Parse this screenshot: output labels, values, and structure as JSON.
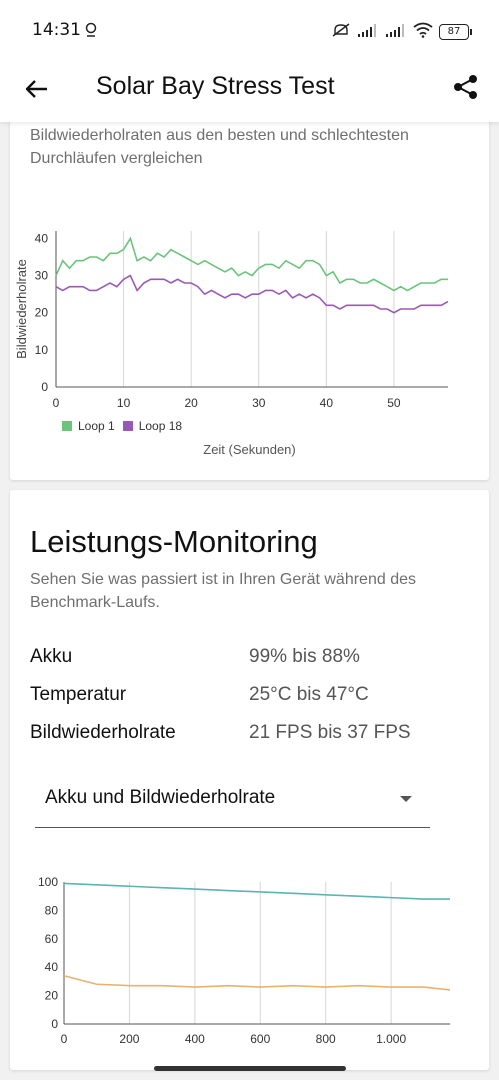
{
  "status": {
    "time": "14:31",
    "battery": "87"
  },
  "appbar": {
    "title": "Solar Bay Stress Test"
  },
  "card1": {
    "description": "Bildwiederholraten aus den besten und schlechtesten Durchläufen vergleichen",
    "xlabel": "Zeit (Sekunden)",
    "ylabel": "Bildwiederholrate",
    "legend": [
      {
        "label": "Loop 1",
        "color": "#6cc47c"
      },
      {
        "label": "Loop 18",
        "color": "#9b59b6"
      }
    ],
    "yticks": [
      "0",
      "10",
      "20",
      "30",
      "40"
    ],
    "xticks": [
      "0",
      "10",
      "20",
      "30",
      "40",
      "50"
    ]
  },
  "card2": {
    "title": "Leistungs-Monitoring",
    "description": "Sehen Sie was passiert ist in Ihren Gerät während des Benchmark-Laufs.",
    "metrics": [
      {
        "name": "Akku",
        "value": "99% bis 88%"
      },
      {
        "name": "Temperatur",
        "value": "25°C bis 47°C"
      },
      {
        "name": "Bildwiederholrate",
        "value": "21 FPS bis 37 FPS"
      }
    ],
    "dropdown": "Akku und Bildwiederholrate",
    "yticks": [
      "0",
      "20",
      "40",
      "60",
      "80",
      "100"
    ],
    "xticks": [
      "0",
      "200",
      "400",
      "600",
      "800",
      "1.000"
    ]
  },
  "chart_data": [
    {
      "type": "line",
      "ylabel": "Bildwiederholrate",
      "xlabel": "Zeit (Sekunden)",
      "xlim": [
        0,
        58
      ],
      "ylim": [
        0,
        42
      ],
      "x": [
        0,
        1,
        2,
        3,
        4,
        5,
        6,
        7,
        8,
        9,
        10,
        11,
        12,
        13,
        14,
        15,
        16,
        17,
        18,
        19,
        20,
        21,
        22,
        23,
        24,
        25,
        26,
        27,
        28,
        29,
        30,
        31,
        32,
        33,
        34,
        35,
        36,
        37,
        38,
        39,
        40,
        41,
        42,
        43,
        44,
        45,
        46,
        47,
        48,
        49,
        50,
        51,
        52,
        53,
        54,
        55,
        56,
        57,
        58
      ],
      "series": [
        {
          "name": "Loop 1",
          "color": "#6cc47c",
          "values": [
            30,
            34,
            32,
            34,
            34,
            35,
            35,
            34,
            36,
            36,
            37,
            40,
            34,
            35,
            34,
            36,
            35,
            37,
            36,
            35,
            34,
            33,
            34,
            33,
            32,
            31,
            32,
            30,
            31,
            30,
            32,
            33,
            33,
            32,
            34,
            33,
            32,
            34,
            34,
            33,
            30,
            31,
            28,
            29,
            29,
            28,
            28,
            29,
            28,
            27,
            26,
            27,
            26,
            27,
            28,
            28,
            28,
            29,
            29
          ]
        },
        {
          "name": "Loop 18",
          "color": "#9b59b6",
          "values": [
            27,
            26,
            27,
            27,
            27,
            26,
            26,
            27,
            28,
            27,
            29,
            30,
            26,
            28,
            29,
            29,
            29,
            28,
            29,
            28,
            28,
            27,
            25,
            26,
            25,
            24,
            25,
            25,
            24,
            25,
            25,
            26,
            26,
            25,
            26,
            24,
            25,
            24,
            25,
            24,
            22,
            22,
            21,
            22,
            22,
            22,
            22,
            22,
            21,
            21,
            20,
            21,
            21,
            21,
            22,
            22,
            22,
            22,
            23
          ]
        }
      ]
    },
    {
      "type": "line",
      "xlim": [
        0,
        1180
      ],
      "ylim": [
        0,
        100
      ],
      "x": [
        0,
        100,
        200,
        300,
        400,
        500,
        600,
        700,
        800,
        900,
        1000,
        1100,
        1180
      ],
      "series": [
        {
          "name": "Akku",
          "color": "#5fb3b3",
          "values": [
            99,
            98,
            97,
            96,
            95,
            94,
            93,
            92,
            91,
            90,
            89,
            88,
            88
          ]
        },
        {
          "name": "Bildwiederholrate",
          "color": "#e8b270",
          "values": [
            34,
            28,
            27,
            27,
            26,
            27,
            26,
            27,
            26,
            27,
            26,
            26,
            24
          ]
        }
      ]
    }
  ]
}
